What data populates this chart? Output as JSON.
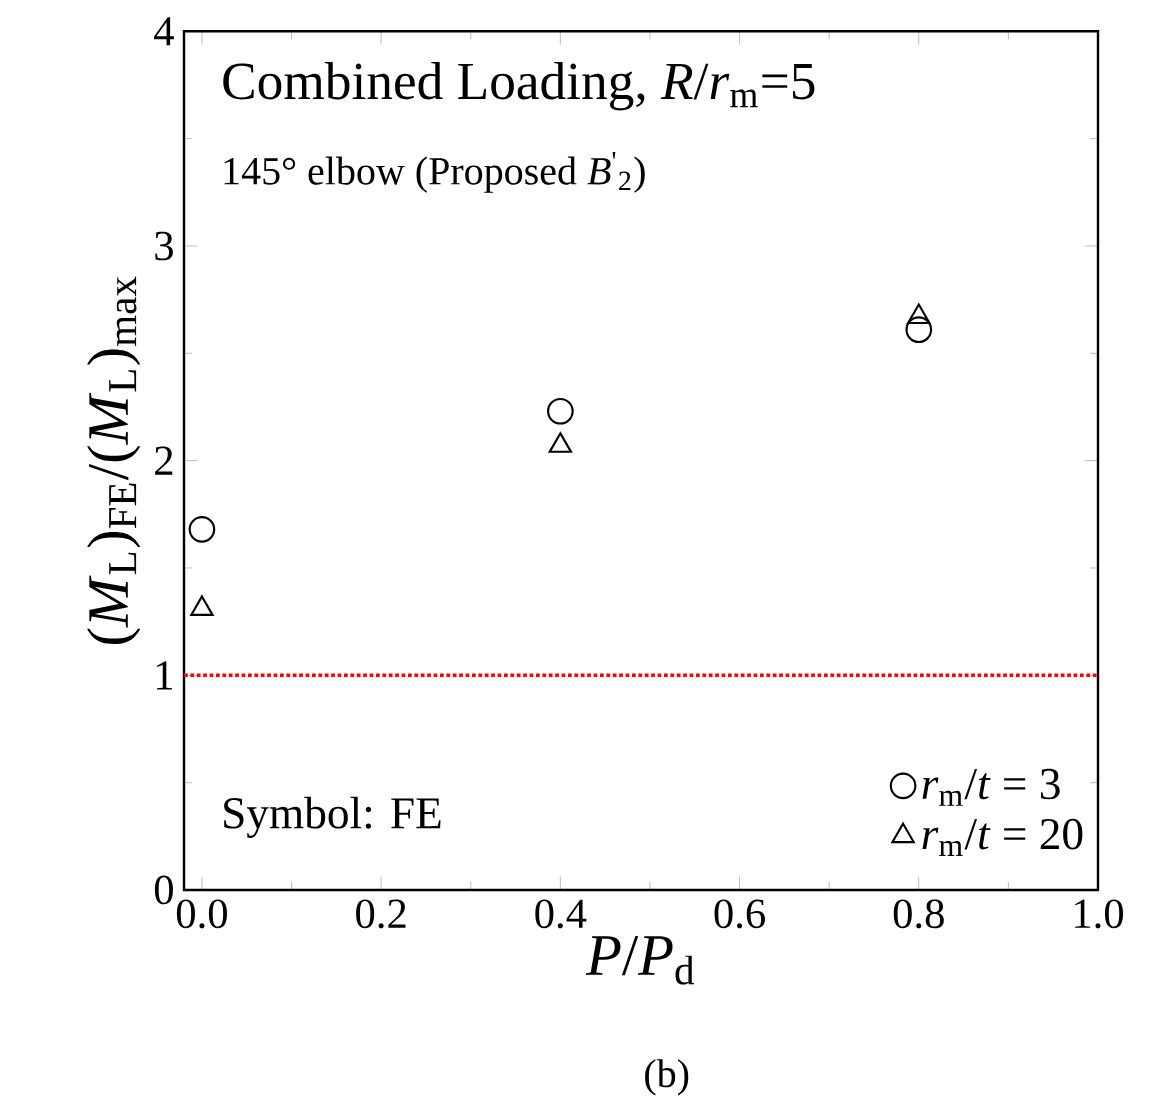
{
  "chart_data": {
    "type": "scatter",
    "title": "Combined Loading, *R*/*r*$_{m}$=5",
    "subtitle": "145° elbow (Proposed *B*$^{'}$$_{2}$)",
    "xlabel": "*P*/*P*$_{d}$",
    "ylabel": "(*M*$_{L}$)$_{FE}$/(*M*$_{L}$)$_{max}$",
    "x": [
      0,
      0.4,
      0.8
    ],
    "series": [
      {
        "name": "*r*$_{m}$/*t* = 3",
        "color": "#000000",
        "marker": "circle",
        "values": [
          1.68,
          2.23,
          2.61
        ]
      },
      {
        "name": "*r*$_{m}$/*t* = 20",
        "color": "#000000",
        "marker": "triangle",
        "values": [
          1.31,
          2.07,
          2.67
        ]
      }
    ],
    "xlim": [
      -0.02,
      1.0
    ],
    "ylim": [
      0,
      4
    ],
    "xticks": [
      {
        "value": 0,
        "label": "0.0"
      },
      0.2,
      0.4,
      0.6,
      0.8,
      {
        "value": 1,
        "label": "1.0"
      }
    ],
    "yticks": [
      0,
      1,
      2,
      3,
      4
    ],
    "ref_lines": [
      {
        "axis": "y",
        "value": 1,
        "color": "#ff0000",
        "line_style": "dotted"
      }
    ],
    "annotations": [
      "Symbol: FE",
      "(b)"
    ],
    "legend": "bottom right",
    "grid": false
  }
}
